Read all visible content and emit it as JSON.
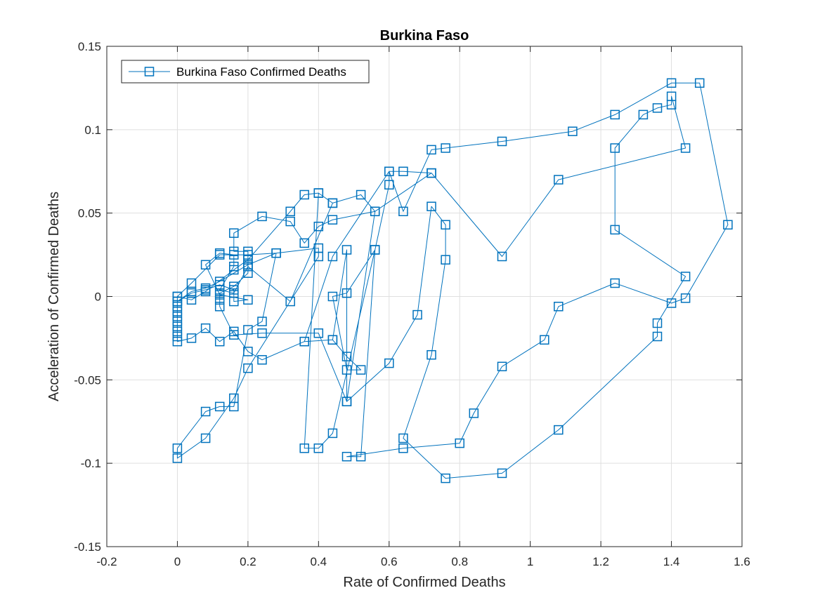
{
  "chart_data": {
    "type": "line",
    "title": "Burkina Faso",
    "xlabel": "Rate of Confirmed Deaths",
    "ylabel": "Acceleration of Confirmed Deaths",
    "xlim": [
      -0.2,
      1.6
    ],
    "ylim": [
      -0.15,
      0.15
    ],
    "xticks": [
      -0.2,
      0,
      0.2,
      0.4,
      0.6,
      0.8,
      1,
      1.2,
      1.4,
      1.6
    ],
    "xtick_labels": [
      "-0.2",
      "0",
      "0.2",
      "0.4",
      "0.6",
      "0.8",
      "1",
      "1.2",
      "1.4",
      "1.6"
    ],
    "yticks": [
      -0.15,
      -0.1,
      -0.05,
      0,
      0.05,
      0.1,
      0.15
    ],
    "ytick_labels": [
      "-0.15",
      "-0.1",
      "-0.05",
      "0",
      "0.05",
      "0.1",
      "0.15"
    ],
    "grid": true,
    "legend_position": "top-left",
    "color": "#0072BD",
    "marker": "square",
    "series": [
      {
        "name": "Burkina Faso Confirmed Deaths",
        "points": [
          [
            0,
            0
          ],
          [
            0,
            -0.003
          ],
          [
            0,
            -0.006
          ],
          [
            0,
            -0.009
          ],
          [
            0,
            -0.012
          ],
          [
            0,
            -0.015
          ],
          [
            0,
            -0.018
          ],
          [
            0,
            -0.021
          ],
          [
            0,
            -0.024
          ],
          [
            0,
            -0.027
          ],
          [
            0.04,
            -0.025
          ],
          [
            0.08,
            -0.019
          ],
          [
            0.12,
            -0.027
          ],
          [
            0.16,
            -0.021
          ],
          [
            0.2,
            -0.033
          ],
          [
            0.24,
            -0.038
          ],
          [
            0.36,
            -0.027
          ],
          [
            0.44,
            -0.026
          ],
          [
            0.48,
            -0.036
          ],
          [
            0.52,
            -0.044
          ],
          [
            0.48,
            -0.044
          ],
          [
            0.44,
            0
          ],
          [
            0.48,
            0.002
          ],
          [
            0.56,
            0.028
          ],
          [
            0.6,
            0.067
          ],
          [
            0.6,
            0.075
          ],
          [
            0.64,
            0.075
          ],
          [
            0.72,
            0.074
          ],
          [
            0.56,
            0.051
          ],
          [
            0.44,
            0.046
          ],
          [
            0.4,
            0.042
          ],
          [
            0.36,
            0.032
          ],
          [
            0.32,
            0.045
          ],
          [
            0.24,
            0.048
          ],
          [
            0.16,
            0.038
          ],
          [
            0.16,
            0.027
          ],
          [
            0.2,
            0.027
          ],
          [
            0.2,
            0.022
          ],
          [
            0.2,
            0.018
          ],
          [
            0.2,
            0.014
          ],
          [
            0.16,
            0.006
          ],
          [
            0.12,
            0.002
          ],
          [
            0.12,
            -0.002
          ],
          [
            0.12,
            -0.006
          ],
          [
            0.16,
            -0.023
          ],
          [
            0.24,
            -0.022
          ],
          [
            0.4,
            -0.022
          ],
          [
            0.48,
            -0.063
          ],
          [
            0.56,
            0.051
          ],
          [
            0.52,
            0.061
          ],
          [
            0.44,
            0.056
          ],
          [
            0.4,
            0.062
          ],
          [
            0.36,
            0.061
          ],
          [
            0.32,
            0.051
          ],
          [
            0.2,
            0.022
          ],
          [
            0.16,
            0.016
          ],
          [
            0.08,
            0.003
          ],
          [
            0.04,
            -0.002
          ],
          [
            0,
            0
          ],
          [
            0.04,
            0.008
          ],
          [
            0.12,
            0.025
          ],
          [
            0.2,
            0.025
          ],
          [
            0.28,
            0.026
          ],
          [
            0.4,
            0.029
          ],
          [
            0.4,
            0.024
          ],
          [
            0.2,
            -0.043
          ],
          [
            0.16,
            -0.061
          ],
          [
            0.08,
            -0.085
          ],
          [
            0,
            -0.097
          ],
          [
            0,
            -0.091
          ],
          [
            0.08,
            -0.069
          ],
          [
            0.12,
            -0.066
          ],
          [
            0.16,
            -0.066
          ],
          [
            0.2,
            -0.02
          ],
          [
            0.24,
            -0.015
          ],
          [
            0.28,
            0.026
          ],
          [
            0.2,
            0.019
          ],
          [
            0.12,
            0.009
          ],
          [
            0.08,
            0.005
          ],
          [
            0.04,
            0.003
          ],
          [
            0,
            -0.003
          ],
          [
            0.04,
            0.002
          ],
          [
            0.08,
            0.004
          ],
          [
            0.12,
            0.007
          ],
          [
            0.16,
            0.004
          ],
          [
            0.16,
            -0.003
          ],
          [
            0.2,
            -0.002
          ],
          [
            0.12,
            0.001
          ],
          [
            0.08,
            0.019
          ],
          [
            0.12,
            0.026
          ],
          [
            0.16,
            0.025
          ],
          [
            0.16,
            0.018
          ],
          [
            0.12,
            0.004
          ],
          [
            0.16,
            0.002
          ],
          [
            0.2,
            0.018
          ],
          [
            0.32,
            -0.003
          ],
          [
            0.44,
            0.056
          ],
          [
            0.4,
            0.062
          ],
          [
            0.36,
            -0.091
          ],
          [
            0.4,
            -0.091
          ],
          [
            0.44,
            -0.082
          ],
          [
            0.56,
            0.028
          ],
          [
            0.52,
            -0.096
          ],
          [
            0.48,
            -0.096
          ],
          [
            0.64,
            -0.091
          ],
          [
            0.8,
            -0.088
          ],
          [
            0.84,
            -0.07
          ],
          [
            0.92,
            -0.042
          ],
          [
            1.04,
            -0.026
          ],
          [
            1.08,
            -0.006
          ],
          [
            1.24,
            0.008
          ],
          [
            1.4,
            -0.004
          ],
          [
            1.44,
            -0.001
          ],
          [
            1.56,
            0.043
          ],
          [
            1.48,
            0.128
          ],
          [
            1.4,
            0.128
          ],
          [
            1.24,
            0.109
          ],
          [
            1.12,
            0.099
          ],
          [
            0.92,
            0.093
          ],
          [
            0.76,
            0.089
          ],
          [
            0.72,
            0.088
          ],
          [
            0.64,
            0.051
          ],
          [
            0.6,
            0.075
          ],
          [
            0.44,
            0.024
          ],
          [
            0.36,
            -0.027
          ],
          [
            0.44,
            -0.026
          ],
          [
            0.48,
            0.028
          ],
          [
            0.48,
            -0.063
          ],
          [
            0.6,
            -0.04
          ],
          [
            0.68,
            -0.011
          ],
          [
            0.72,
            0.054
          ],
          [
            0.76,
            0.043
          ],
          [
            0.76,
            0.022
          ],
          [
            0.72,
            -0.035
          ],
          [
            0.64,
            -0.085
          ],
          [
            0.76,
            -0.109
          ],
          [
            0.92,
            -0.106
          ],
          [
            1.08,
            -0.08
          ],
          [
            1.36,
            -0.024
          ],
          [
            1.36,
            -0.016
          ],
          [
            1.44,
            0.012
          ],
          [
            1.24,
            0.04
          ],
          [
            1.24,
            0.089
          ],
          [
            1.32,
            0.109
          ],
          [
            1.36,
            0.113
          ],
          [
            1.4,
            0.115
          ],
          [
            1.4,
            0.12
          ],
          [
            1.44,
            0.089
          ],
          [
            1.08,
            0.07
          ],
          [
            0.92,
            0.024
          ],
          [
            0.72,
            0.074
          ]
        ]
      }
    ]
  }
}
